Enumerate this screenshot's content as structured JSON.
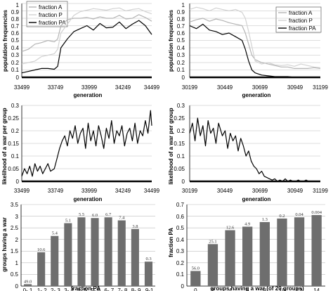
{
  "colors": {
    "fraction_A": "#b4b4b4",
    "fraction_P": "#d2d2d2",
    "fraction_PA": "#000000",
    "bar": "#6e6e6e",
    "grid": "#bdbdbd"
  },
  "chart_data": [
    {
      "id": "top-left",
      "type": "line",
      "xlabel": "generation",
      "ylabel": "population frequencies",
      "xlim": [
        33499,
        34499
      ],
      "ylim": [
        0,
        1
      ],
      "xticks": [
        "33499",
        "33749",
        "33999",
        "34249",
        "34499"
      ],
      "yticks": [
        "0",
        "0.1",
        "0.2",
        "0.3",
        "0.4",
        "0.5",
        "0.6",
        "0.7",
        "0.8",
        "0.9",
        "1"
      ],
      "grid": "horizontal",
      "legend": "top-left",
      "series": [
        {
          "name": "fraction A",
          "key": "fraction_A",
          "x": [
            33499,
            33550,
            33600,
            33650,
            33700,
            33749,
            33775,
            33800,
            33850,
            33900,
            33950,
            34000,
            34050,
            34100,
            34150,
            34200,
            34250,
            34300,
            34350,
            34400,
            34450,
            34499
          ],
          "y": [
            0.35,
            0.38,
            0.45,
            0.47,
            0.5,
            0.48,
            0.52,
            0.7,
            0.78,
            0.8,
            0.8,
            0.81,
            0.79,
            0.82,
            0.8,
            0.8,
            0.84,
            0.79,
            0.8,
            0.85,
            0.81,
            0.76
          ]
        },
        {
          "name": "fraction P",
          "key": "fraction_P",
          "x": [
            33499,
            33550,
            33600,
            33650,
            33700,
            33749,
            33775,
            33800,
            33850,
            33900,
            33950,
            34000,
            34050,
            34100,
            34150,
            34200,
            34250,
            34300,
            34350,
            34400,
            34450,
            34499
          ],
          "y": [
            0.18,
            0.2,
            0.22,
            0.28,
            0.3,
            0.32,
            0.38,
            0.6,
            0.72,
            0.84,
            0.89,
            0.91,
            0.93,
            0.92,
            0.91,
            0.93,
            0.94,
            0.9,
            0.92,
            0.93,
            0.89,
            0.86
          ]
        },
        {
          "name": "fraction PA",
          "key": "fraction_PA",
          "x": [
            33499,
            33550,
            33600,
            33650,
            33700,
            33749,
            33775,
            33800,
            33850,
            33900,
            33950,
            34000,
            34050,
            34100,
            34150,
            34200,
            34250,
            34300,
            34350,
            34400,
            34450,
            34499
          ],
          "y": [
            0.06,
            0.08,
            0.1,
            0.12,
            0.12,
            0.11,
            0.15,
            0.4,
            0.52,
            0.62,
            0.66,
            0.7,
            0.64,
            0.73,
            0.67,
            0.68,
            0.75,
            0.66,
            0.72,
            0.77,
            0.7,
            0.58
          ]
        }
      ]
    },
    {
      "id": "top-right",
      "type": "line",
      "xlabel": "generation",
      "ylabel": "population frequencies",
      "xlim": [
        30199,
        31199
      ],
      "ylim": [
        0,
        1
      ],
      "xticks": [
        "30199",
        "30449",
        "30699",
        "30949",
        "31199"
      ],
      "yticks": [
        "0",
        "0.1",
        "0.2",
        "0.3",
        "0.4",
        "0.5",
        "0.6",
        "0.7",
        "0.8",
        "0.9",
        "1"
      ],
      "grid": "horizontal",
      "legend": "top-right",
      "series": [
        {
          "name": "fraction A",
          "key": "fraction_A",
          "x": [
            30199,
            30250,
            30300,
            30350,
            30400,
            30449,
            30500,
            30550,
            30600,
            30625,
            30650,
            30675,
            30700,
            30750,
            30800,
            30850,
            30900,
            30950,
            31000,
            31050,
            31100,
            31150,
            31199
          ],
          "y": [
            0.75,
            0.78,
            0.8,
            0.76,
            0.79,
            0.77,
            0.74,
            0.72,
            0.7,
            0.6,
            0.45,
            0.3,
            0.24,
            0.2,
            0.18,
            0.16,
            0.14,
            0.14,
            0.12,
            0.12,
            0.12,
            0.13,
            0.12
          ]
        },
        {
          "name": "fraction P",
          "key": "fraction_P",
          "x": [
            30199,
            30250,
            30300,
            30350,
            30400,
            30449,
            30500,
            30550,
            30600,
            30625,
            30650,
            30675,
            30700,
            30750,
            30800,
            30850,
            30900,
            30950,
            31000,
            31050,
            31100,
            31150,
            31199
          ],
          "y": [
            0.92,
            0.95,
            0.93,
            0.9,
            0.94,
            0.92,
            0.9,
            0.92,
            0.88,
            0.8,
            0.62,
            0.42,
            0.22,
            0.18,
            0.2,
            0.17,
            0.16,
            0.17,
            0.15,
            0.18,
            0.16,
            0.14,
            0.13
          ]
        },
        {
          "name": "fraction PA",
          "key": "fraction_PA",
          "x": [
            30199,
            30250,
            30300,
            30350,
            30400,
            30449,
            30500,
            30550,
            30600,
            30625,
            30650,
            30675,
            30700,
            30750,
            30800,
            30850,
            30900,
            30950,
            31000,
            31050,
            31100,
            31150,
            31199
          ],
          "y": [
            0.7,
            0.66,
            0.72,
            0.64,
            0.62,
            0.58,
            0.6,
            0.55,
            0.5,
            0.38,
            0.22,
            0.1,
            0.06,
            0.03,
            0.02,
            0.01,
            0.01,
            0.01,
            0.0,
            0.0,
            0.0,
            0.0,
            0.0
          ]
        }
      ]
    },
    {
      "id": "middle-left",
      "type": "line",
      "xlabel": "generation",
      "ylabel": "likelihood of a war per group",
      "xlim": [
        33499,
        34499
      ],
      "ylim": [
        0,
        0.3
      ],
      "xticks": [
        "33499",
        "33749",
        "33999",
        "34249",
        "34499"
      ],
      "yticks": [
        "0",
        "0.05",
        "0.1",
        "0.15",
        "0.2",
        "0.25",
        "0.3"
      ],
      "grid": "horizontal",
      "series": [
        {
          "name": "",
          "key": "fraction_PA",
          "x": [
            33499,
            33520,
            33540,
            33560,
            33580,
            33600,
            33620,
            33640,
            33660,
            33680,
            33700,
            33720,
            33749,
            33770,
            33790,
            33810,
            33830,
            33850,
            33870,
            33890,
            33910,
            33930,
            33950,
            33970,
            33990,
            34010,
            34030,
            34050,
            34070,
            34090,
            34110,
            34130,
            34150,
            34170,
            34190,
            34210,
            34230,
            34250,
            34270,
            34290,
            34310,
            34330,
            34350,
            34370,
            34390,
            34410,
            34430,
            34450,
            34470,
            34490,
            34499
          ],
          "y": [
            0.02,
            0.05,
            0.03,
            0.06,
            0.02,
            0.07,
            0.04,
            0.06,
            0.03,
            0.05,
            0.07,
            0.04,
            0.05,
            0.09,
            0.13,
            0.16,
            0.18,
            0.14,
            0.2,
            0.17,
            0.22,
            0.15,
            0.19,
            0.21,
            0.13,
            0.23,
            0.16,
            0.2,
            0.14,
            0.22,
            0.18,
            0.13,
            0.21,
            0.17,
            0.24,
            0.15,
            0.2,
            0.18,
            0.22,
            0.14,
            0.19,
            0.21,
            0.16,
            0.23,
            0.15,
            0.2,
            0.18,
            0.24,
            0.19,
            0.28,
            0.22
          ]
        }
      ]
    },
    {
      "id": "middle-right",
      "type": "line",
      "xlabel": "generation",
      "ylabel": "likelihood of a war per group",
      "xlim": [
        30199,
        31199
      ],
      "ylim": [
        0,
        0.3
      ],
      "xticks": [
        "30199",
        "30449",
        "30699",
        "30949",
        "31199"
      ],
      "yticks": [
        "0",
        "0.05",
        "0.1",
        "0.15",
        "0.2",
        "0.25",
        "0.3"
      ],
      "grid": "horizontal",
      "series": [
        {
          "name": "",
          "key": "fraction_PA",
          "x": [
            30199,
            30220,
            30240,
            30260,
            30280,
            30300,
            30320,
            30340,
            30360,
            30380,
            30400,
            30420,
            30449,
            30470,
            30490,
            30510,
            30530,
            30550,
            30570,
            30590,
            30610,
            30630,
            30650,
            30670,
            30690,
            30710,
            30730,
            30750,
            30770,
            30790,
            30810,
            30830,
            30850,
            30870,
            30890,
            30910,
            30930,
            30950,
            30970,
            30990,
            31010,
            31030,
            31050,
            31070,
            31090,
            31110,
            31130,
            31150,
            31170,
            31199
          ],
          "y": [
            0.19,
            0.23,
            0.16,
            0.25,
            0.18,
            0.22,
            0.14,
            0.24,
            0.19,
            0.21,
            0.15,
            0.23,
            0.18,
            0.2,
            0.13,
            0.19,
            0.16,
            0.18,
            0.12,
            0.17,
            0.14,
            0.1,
            0.12,
            0.08,
            0.06,
            0.05,
            0.03,
            0.04,
            0.02,
            0.015,
            0.01,
            0.005,
            0.01,
            0.0,
            0.005,
            0.0,
            0.01,
            0.0,
            0.005,
            0.0,
            0.0,
            0.005,
            0.0,
            0.0,
            0.005,
            0.0,
            0.0,
            0.0,
            0.0,
            0.0
          ]
        }
      ]
    },
    {
      "id": "bottom-left",
      "type": "bar",
      "xlabel": "fraction PA",
      "ylabel": "groups having a war",
      "ylim": [
        0,
        3.5
      ],
      "yticks": [
        "0",
        "0.5",
        "1",
        "1.5",
        "2",
        "2.5",
        "3",
        "3.5"
      ],
      "grid": "horizontal",
      "categories": [
        "0-.1",
        ".1-.2",
        ".2-.3",
        ".3-.4",
        ".4-.5",
        ".5-.6",
        ".6-.7",
        ".7-.8",
        ".8-.9",
        ".9-1"
      ],
      "values": [
        0.08,
        1.45,
        2.15,
        2.7,
        2.95,
        2.92,
        2.95,
        2.82,
        2.45,
        1.05
      ],
      "data_labels": [
        "49.0",
        "10.6",
        "5.4",
        "5.1",
        "5.5",
        "6.0",
        "6.7",
        "7.4",
        "3.8",
        "0.3"
      ]
    },
    {
      "id": "bottom-right",
      "type": "bar",
      "xlabel": "groups having a war (of 20 groups)",
      "ylabel": "fraction PA",
      "ylim": [
        0,
        0.7
      ],
      "yticks": [
        "0",
        "0.1",
        "0.2",
        "0.3",
        "0.4",
        "0.5",
        "0.6",
        "0.7"
      ],
      "grid": "horizontal",
      "categories": [
        "0",
        "2",
        "4",
        "6",
        "8",
        "10",
        "12",
        "14"
      ],
      "values": [
        0.13,
        0.36,
        0.48,
        0.51,
        0.55,
        0.58,
        0.59,
        0.61
      ],
      "data_labels": [
        "56.0",
        "25.1",
        "12.6",
        "4.9",
        "1.3",
        "0.2",
        "0.04",
        "0.004"
      ]
    }
  ]
}
